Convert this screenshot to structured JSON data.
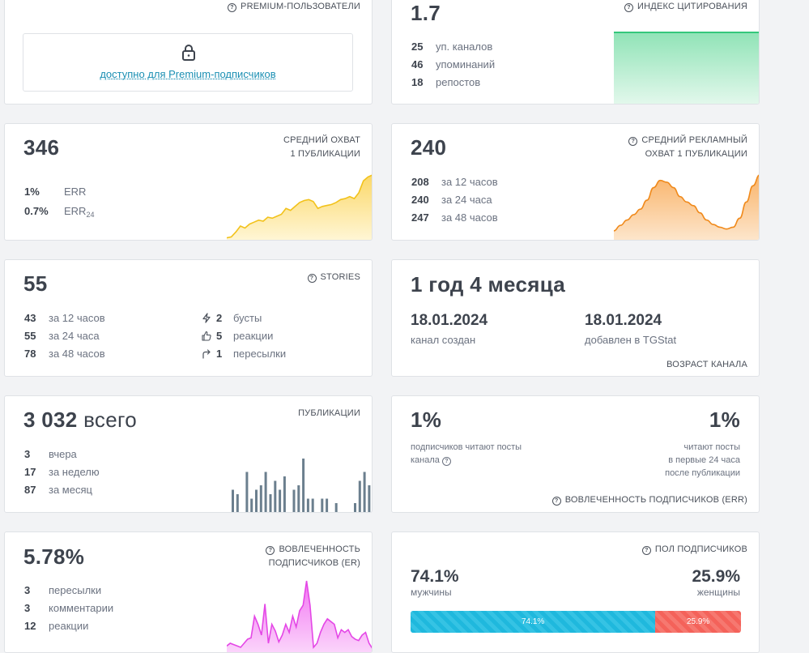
{
  "premium": {
    "label": "PREMIUM-ПОЛЬЗОВАТЕЛИ",
    "lock_text": "доступно для Premium-подписчиков"
  },
  "citation": {
    "value": "1.7",
    "label": "ИНДЕКС ЦИТИРОВАНИЯ",
    "rows": [
      {
        "num": "25",
        "text": "уп. каналов"
      },
      {
        "num": "46",
        "text": "упоминаний"
      },
      {
        "num": "18",
        "text": "репостов"
      }
    ],
    "color": "#34c77b"
  },
  "reach": {
    "value": "346",
    "label_line1": "СРЕДНИЙ ОХВАТ",
    "label_line2": "1 ПУБЛИКАЦИИ",
    "rows": [
      {
        "num": "1%",
        "text": "ERR"
      },
      {
        "num": "0.7%",
        "text": "ERR",
        "sub": "24"
      }
    ],
    "color": "#f2c21b"
  },
  "ad_reach": {
    "value": "240",
    "label_line1": "СРЕДНИЙ РЕКЛАМНЫЙ",
    "label_line2": "ОХВАТ 1 ПУБЛИКАЦИИ",
    "rows": [
      {
        "num": "208",
        "text": "за 12 часов"
      },
      {
        "num": "240",
        "text": "за 24 часа"
      },
      {
        "num": "247",
        "text": "за 48 часов"
      }
    ],
    "color": "#f08a1c"
  },
  "stories": {
    "value": "55",
    "label": "STORIES",
    "rows": [
      {
        "num": "43",
        "text": "за 12 часов"
      },
      {
        "num": "55",
        "text": "за 24 часа"
      },
      {
        "num": "78",
        "text": "за 48 часов"
      }
    ],
    "right_rows": [
      {
        "icon": "bolt-icon",
        "num": "2",
        "text": "бусты"
      },
      {
        "icon": "thumbs-up-icon",
        "num": "5",
        "text": "реакции"
      },
      {
        "icon": "share-arrow-icon",
        "num": "1",
        "text": "пересылки"
      }
    ]
  },
  "age": {
    "value": "1 год 4 месяца",
    "created_date": "18.01.2024",
    "created_label": "канал создан",
    "added_date": "18.01.2024",
    "added_label": "добавлен в TGStat",
    "label": "ВОЗРАСТ КАНАЛА"
  },
  "posts": {
    "value": "3 032",
    "value_suffix": "всего",
    "label": "ПУБЛИКАЦИИ",
    "rows": [
      {
        "num": "3",
        "text": "вчера"
      },
      {
        "num": "17",
        "text": "за неделю"
      },
      {
        "num": "87",
        "text": "за месяц"
      }
    ],
    "color": "#6b7f8e"
  },
  "err": {
    "left_value": "1%",
    "left_text_line1": "подписчиков читают посты",
    "left_text_line2": "канала",
    "right_value": "1%",
    "right_line1": "читают посты",
    "right_line2": "в первые 24 часа",
    "right_line3": "после публикации",
    "label": "ВОВЛЕЧЕННОСТЬ ПОДПИСЧИКОВ (ERR)"
  },
  "er": {
    "value": "5.78%",
    "label_line1": "ВОВЛЕЧЕННОСТЬ",
    "label_line2": "ПОДПИСЧИКОВ (ER)",
    "rows": [
      {
        "num": "3",
        "text": "пересылки"
      },
      {
        "num": "3",
        "text": "комментарии"
      },
      {
        "num": "12",
        "text": "реакции"
      }
    ],
    "color": "#e447e6"
  },
  "gender": {
    "label": "ПОЛ ПОДПИСЧИКОВ",
    "male_value": "74.1%",
    "male_label": "мужчины",
    "female_value": "25.9%",
    "female_label": "женщины",
    "male_share": 74.1,
    "female_share": 25.9,
    "male_bar_text": "74.1%",
    "female_bar_text": "25.9%",
    "male_color": "#1fb8dd",
    "female_color": "#f4625a"
  },
  "chart_data": [
    {
      "type": "area",
      "name": "reach",
      "values": [
        2,
        3,
        8,
        14,
        12,
        16,
        18,
        20,
        19,
        23,
        22,
        24,
        26,
        32,
        30,
        34,
        38,
        40,
        41,
        39,
        32,
        34,
        35,
        36,
        38,
        41,
        42,
        44,
        42,
        48,
        60,
        64,
        66
      ]
    },
    {
      "type": "area",
      "name": "ad_reach",
      "values": [
        10,
        16,
        22,
        28,
        34,
        44,
        58,
        66,
        64,
        58,
        48,
        42,
        38,
        30,
        22,
        17,
        14,
        12,
        14,
        24,
        42,
        60,
        72
      ]
    },
    {
      "type": "bar",
      "name": "posts",
      "values": [
        5,
        4,
        0,
        9,
        3,
        5,
        6,
        9,
        4,
        7,
        5,
        8,
        0,
        5,
        6,
        12,
        3,
        3,
        0,
        3,
        3,
        0,
        2,
        0,
        0,
        0,
        2,
        7,
        9,
        6,
        5
      ]
    },
    {
      "type": "area",
      "name": "er",
      "values": [
        4,
        6,
        5,
        4,
        3,
        6,
        9,
        10,
        26,
        20,
        12,
        35,
        6,
        20,
        15,
        7,
        12,
        20,
        14,
        26,
        18,
        30,
        34,
        52,
        34,
        3,
        6,
        14,
        20,
        24,
        22,
        20,
        10,
        16,
        14,
        16,
        11,
        9,
        8,
        12,
        14,
        6,
        2
      ]
    }
  ]
}
